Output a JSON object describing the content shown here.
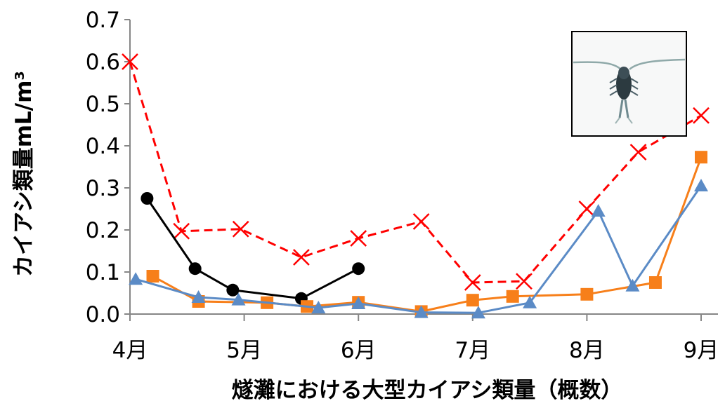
{
  "chart_data": {
    "type": "line",
    "title": "",
    "xlabel": "燧灘における大型カイアシ類量（概数）",
    "ylabel": "カイアシ類量mL/m³",
    "ylim": [
      0,
      0.7
    ],
    "xlim": [
      4,
      9
    ],
    "y_ticks": [
      "0.0",
      "0.1",
      "0.2",
      "0.3",
      "0.4",
      "0.5",
      "0.6",
      "0.7"
    ],
    "y_tick_values": [
      0,
      0.1,
      0.2,
      0.3,
      0.4,
      0.5,
      0.6,
      0.7
    ],
    "x_ticks": [
      "4月",
      "5月",
      "6月",
      "7月",
      "8月",
      "9月"
    ],
    "x_tick_values": [
      4,
      5,
      6,
      7,
      8,
      9
    ],
    "grid": false,
    "legend": "none",
    "inset_image": "copepod-photo",
    "series": [
      {
        "color": "#ff0000",
        "marker": "x",
        "dashed": true,
        "x": [
          4.0,
          4.45,
          4.97,
          5.5,
          6.0,
          6.55,
          7.0,
          7.45,
          8.0,
          8.45,
          9.0
        ],
        "values": [
          0.6,
          0.197,
          0.202,
          0.135,
          0.18,
          0.22,
          0.075,
          0.078,
          0.25,
          0.385,
          0.472
        ]
      },
      {
        "color": "#000000",
        "marker": "circle",
        "dashed": false,
        "x": [
          4.15,
          4.57,
          4.9,
          5.5,
          6.0
        ],
        "values": [
          0.275,
          0.108,
          0.057,
          0.037,
          0.108
        ]
      },
      {
        "color": "#f77f1a",
        "marker": "square",
        "dashed": false,
        "x": [
          4.2,
          4.6,
          5.2,
          5.55,
          6.0,
          6.55,
          7.0,
          7.35,
          8.0,
          8.6,
          9.0
        ],
        "values": [
          0.09,
          0.03,
          0.027,
          0.018,
          0.028,
          0.006,
          0.033,
          0.042,
          0.047,
          0.075,
          0.373
        ]
      },
      {
        "color": "#5b8bc6",
        "marker": "triangle",
        "dashed": false,
        "x": [
          4.05,
          4.6,
          4.95,
          5.65,
          6.0,
          6.55,
          7.05,
          7.5,
          8.1,
          8.4,
          9.0
        ],
        "values": [
          0.083,
          0.04,
          0.034,
          0.015,
          0.025,
          0.004,
          0.003,
          0.027,
          0.245,
          0.067,
          0.305
        ]
      }
    ]
  }
}
